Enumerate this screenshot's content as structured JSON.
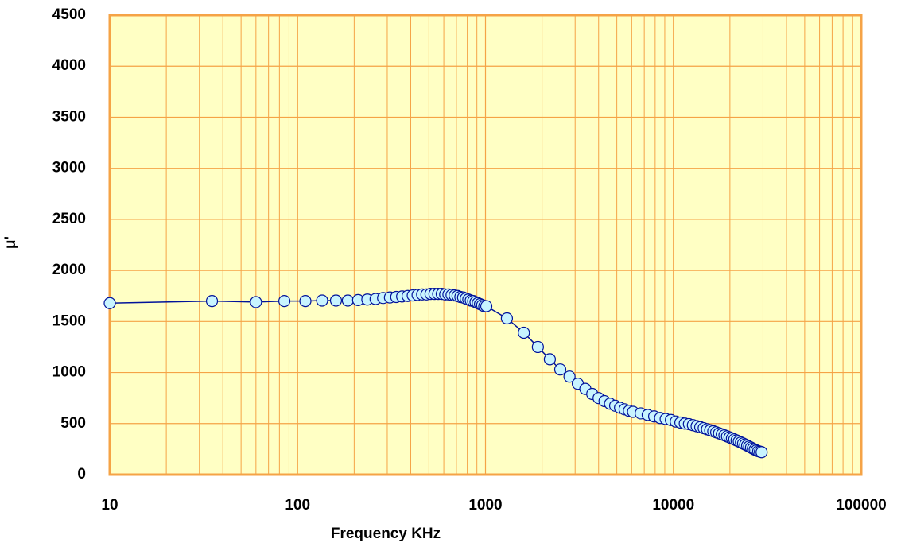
{
  "chart_data": {
    "type": "line",
    "x_label": "Frequency  KHz",
    "y_label": "μ'",
    "xlim": [
      10,
      100000
    ],
    "xticks": [
      10,
      100,
      1000,
      10000,
      100000
    ],
    "xscale": "log",
    "ylim": [
      0,
      4500
    ],
    "yticks": [
      0,
      500,
      1000,
      1500,
      2000,
      2500,
      3000,
      3500,
      4000,
      4500
    ],
    "grid": true,
    "minor_grid": true,
    "background": "#ffffc4",
    "grid_color": "#f5a346",
    "series": [
      {
        "color": "#00129a",
        "marker_fill": "#c8f4ff",
        "x": [
          10,
          35,
          60,
          85,
          110,
          135,
          160,
          185,
          210,
          235,
          260,
          285,
          310,
          335,
          360,
          385,
          410,
          435,
          460,
          485,
          510,
          535,
          560,
          585,
          610,
          635,
          660,
          685,
          710,
          735,
          760,
          785,
          810,
          835,
          860,
          885,
          910,
          935,
          960,
          985,
          1010,
          1300,
          1600,
          1900,
          2200,
          2500,
          2800,
          3100,
          3400,
          3700,
          4000,
          4300,
          4600,
          4900,
          5200,
          5500,
          5800,
          6100,
          6700,
          7300,
          7900,
          8500,
          9100,
          9700,
          10300,
          10900,
          11500,
          12100,
          12700,
          13300,
          13900,
          14500,
          15100,
          15700,
          16300,
          16900,
          17500,
          18100,
          18700,
          19300,
          19900,
          20500,
          21100,
          21700,
          22300,
          22900,
          23500,
          24100,
          24700,
          25300,
          25900,
          26500,
          27100,
          27700,
          28300,
          28900,
          29500
        ],
        "values": [
          1680,
          1700,
          1690,
          1700,
          1700,
          1705,
          1705,
          1705,
          1710,
          1715,
          1720,
          1730,
          1735,
          1740,
          1745,
          1750,
          1755,
          1760,
          1765,
          1765,
          1770,
          1770,
          1770,
          1770,
          1765,
          1765,
          1760,
          1755,
          1750,
          1740,
          1735,
          1725,
          1715,
          1705,
          1700,
          1690,
          1680,
          1670,
          1660,
          1650,
          1650,
          1530,
          1390,
          1250,
          1130,
          1030,
          960,
          890,
          840,
          790,
          750,
          720,
          695,
          675,
          655,
          640,
          625,
          615,
          600,
          585,
          570,
          555,
          545,
          535,
          520,
          510,
          500,
          495,
          485,
          475,
          465,
          455,
          445,
          435,
          425,
          415,
          405,
          395,
          385,
          375,
          365,
          355,
          345,
          335,
          325,
          315,
          305,
          295,
          285,
          275,
          265,
          255,
          245,
          238,
          230,
          225,
          220
        ]
      }
    ]
  }
}
